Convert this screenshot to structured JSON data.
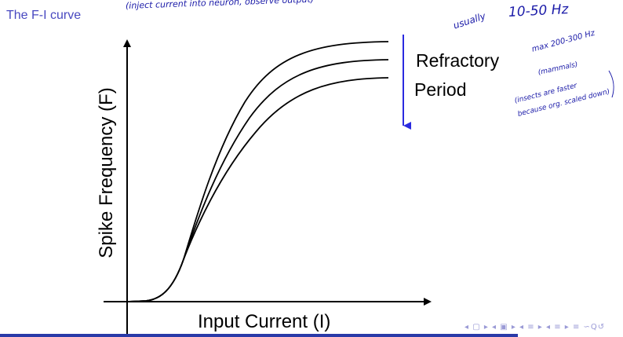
{
  "slide": {
    "title": "The F-I curve",
    "title_color": "#4848c0"
  },
  "annotations": {
    "title_note": "(inject current into neuron, observe output)",
    "usually": "usually",
    "range": "10-50 Hz",
    "max": "max 200-300 Hz",
    "mammals": "(mammals)",
    "insects": "(insects are faster",
    "because": "because org. scaled down)",
    "ink_color": "#1a1aa8"
  },
  "diagram": {
    "x_axis_label": "Input Current (I)",
    "y_axis_label": "Spike Frequency (F)",
    "refractory_line1": "Refractory",
    "refractory_line2": "Period",
    "arrow_color": "#2a2ae0",
    "curve_count": 3
  },
  "nav": {
    "symbols": "◂ ▢ ▸ ◂ ▣ ▸ ◂ ≡ ▸ ◂ ≡ ▸ ≡ ∽Q↺",
    "bar_color": "#2a3aa8"
  }
}
